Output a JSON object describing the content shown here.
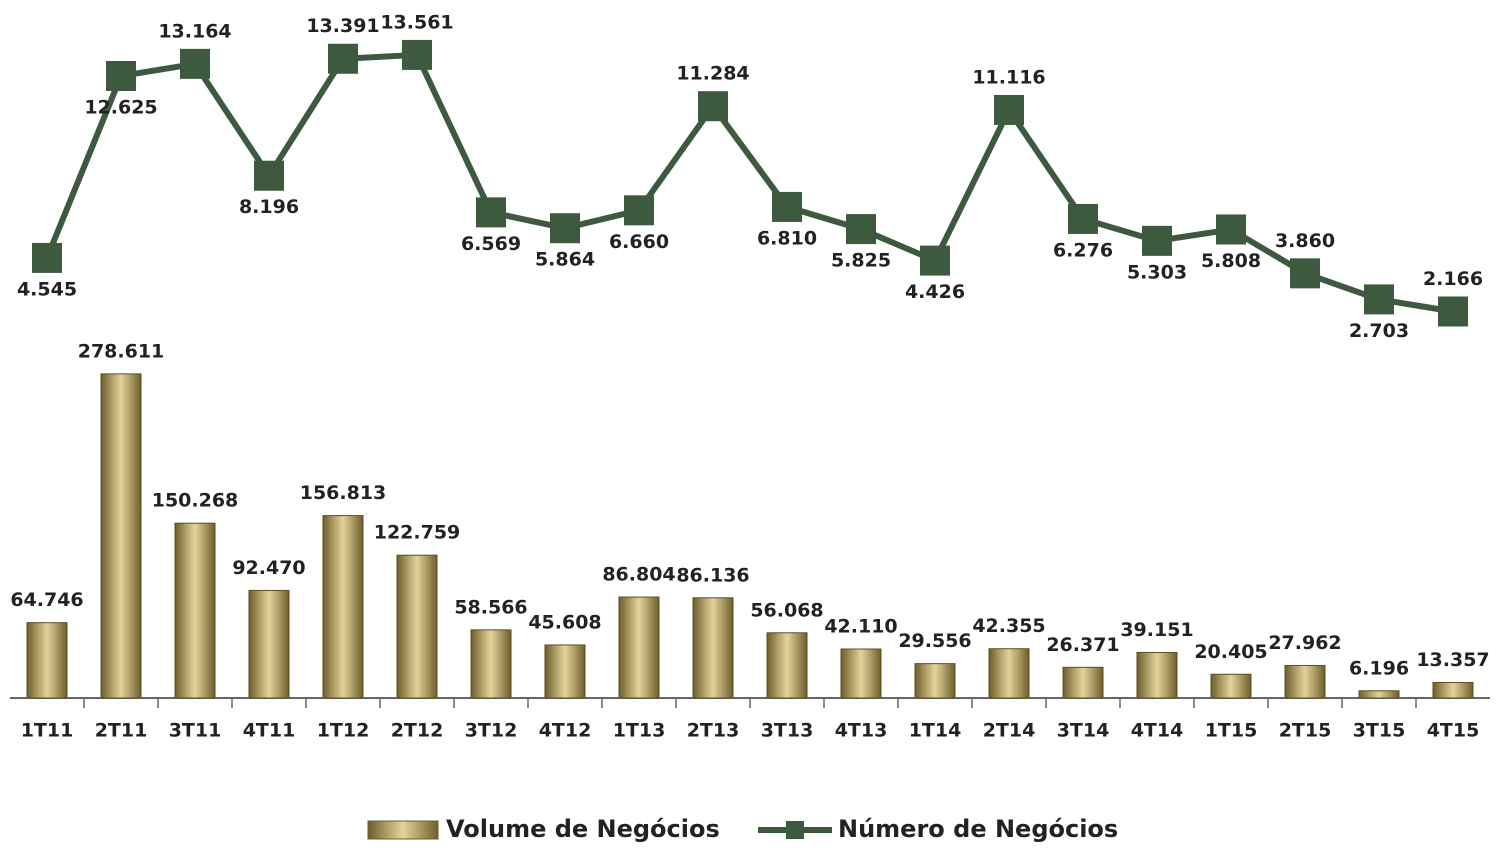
{
  "chart_data": {
    "type": "bar_line",
    "categories": [
      "1T11",
      "2T11",
      "3T11",
      "4T11",
      "1T12",
      "2T12",
      "3T12",
      "4T12",
      "1T13",
      "2T13",
      "3T13",
      "4T13",
      "1T14",
      "2T14",
      "3T14",
      "4T14",
      "1T15",
      "2T15",
      "3T15",
      "4T15"
    ],
    "series": [
      {
        "name": "Volume de Negócios",
        "type": "bar",
        "color": "#a08c4e",
        "values": [
          64746,
          278611,
          150268,
          92470,
          156813,
          122759,
          58566,
          45608,
          86804,
          86136,
          56068,
          42110,
          29556,
          42355,
          26371,
          39151,
          20405,
          27962,
          6196,
          13357
        ],
        "value_labels": [
          "64.746",
          "278.611",
          "150.268",
          "92.470",
          "156.813",
          "122.759",
          "58.566",
          "45.608",
          "86.804",
          "86.136",
          "56.068",
          "42.110",
          "29.556",
          "42.355",
          "26.371",
          "39.151",
          "20.405",
          "27.962",
          "6.196",
          "13.357"
        ]
      },
      {
        "name": "Número de Negócios",
        "type": "line",
        "axis": "y2",
        "color": "#3e5a3e",
        "values": [
          4545,
          12625,
          13164,
          8196,
          13391,
          13561,
          6569,
          5864,
          6660,
          11284,
          6810,
          5825,
          4426,
          11116,
          6276,
          5303,
          5808,
          3860,
          2703,
          2166
        ],
        "value_labels": [
          "4.545",
          "12.625",
          "13.164",
          "8.196",
          "13.391",
          "13.561",
          "6.569",
          "5.864",
          "6.660",
          "11.284",
          "6.810",
          "5.825",
          "4.426",
          "11.116",
          "6.276",
          "5.303",
          "5.808",
          "3.860",
          "2.703",
          "2.166"
        ]
      }
    ],
    "ylim": [
      0,
      600000
    ],
    "y2lim": [
      -15000,
      16000
    ],
    "legend": "bottom"
  }
}
